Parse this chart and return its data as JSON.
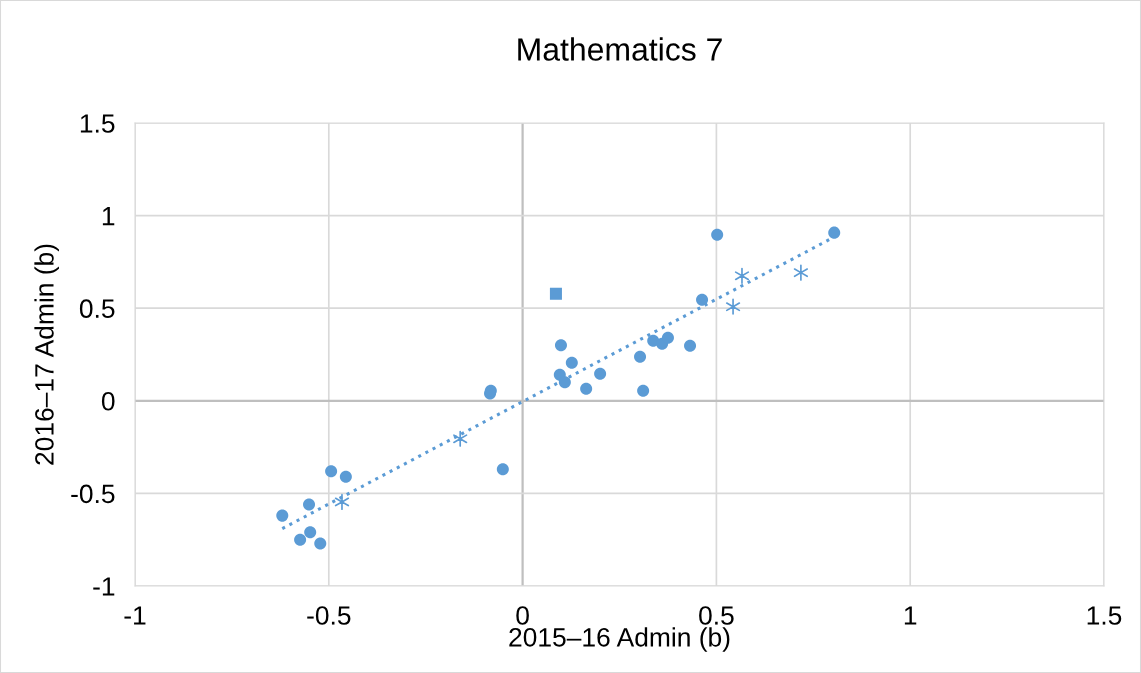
{
  "chart_data": {
    "type": "scatter",
    "title": "Mathematics 7",
    "xlabel": "2015–16 Admin (b)",
    "ylabel": "2016–17 Admin (b)",
    "xlim": [
      -1,
      1.5
    ],
    "ylim": [
      -1,
      1.5
    ],
    "xticks": [
      -1,
      -0.5,
      0,
      0.5,
      1,
      1.5
    ],
    "yticks": [
      -1,
      -0.5,
      0,
      0.5,
      1,
      1.5
    ],
    "grid": true,
    "legend": false,
    "series": [
      {
        "color": "#5b9bd5",
        "marker": "circle",
        "x": [
          -0.62,
          -0.574,
          -0.551,
          -0.548,
          -0.522,
          -0.494,
          -0.456,
          -0.084,
          -0.082,
          -0.051,
          0.099,
          0.096,
          0.109,
          0.127,
          0.164,
          0.2,
          0.303,
          0.311,
          0.337,
          0.36,
          0.375,
          0.432,
          0.463,
          0.502,
          0.804
        ],
        "values": [
          -0.62,
          -0.75,
          -0.56,
          -0.71,
          -0.77,
          -0.38,
          -0.41,
          0.04,
          0.054,
          -0.37,
          0.3,
          0.14,
          0.1,
          0.205,
          0.065,
          0.146,
          0.238,
          0.054,
          0.324,
          0.308,
          0.34,
          0.297,
          0.546,
          0.897,
          0.908
        ]
      },
      {
        "color": "#5b9bd5",
        "marker": "square",
        "x": [
          0.086
        ],
        "values": [
          0.578
        ]
      },
      {
        "color": "#5b9bd5",
        "marker": "cross",
        "x": [
          -0.466,
          -0.161,
          0.543,
          0.566,
          0.718
        ],
        "values": [
          -0.546,
          -0.205,
          0.508,
          0.675,
          0.692
        ]
      },
      {
        "type": "line",
        "color": "#5b9bd5",
        "marker": "none",
        "line_style": "dotted",
        "x": [
          -0.62,
          0.8
        ],
        "values": [
          -0.69,
          0.88
        ]
      }
    ]
  }
}
